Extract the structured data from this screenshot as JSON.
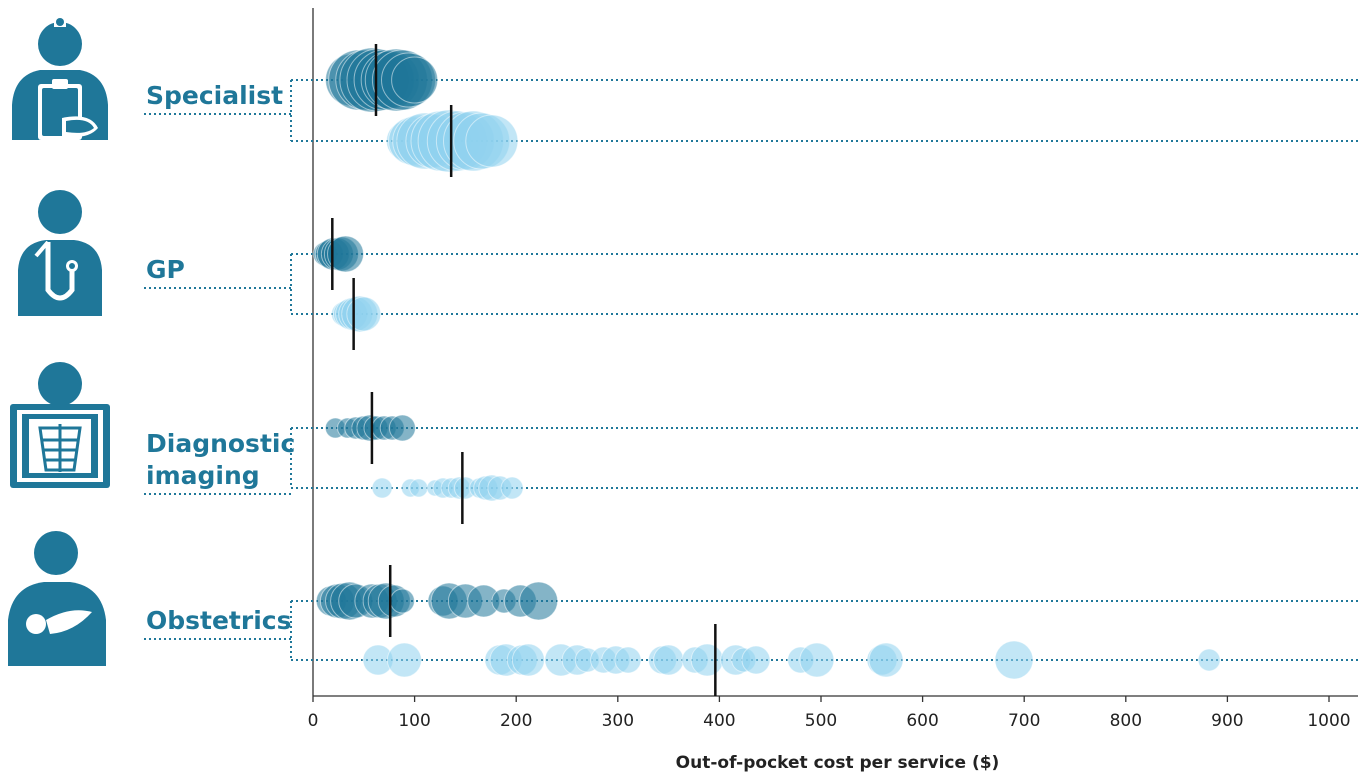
{
  "colors": {
    "dark": "#1f7799",
    "light": "#8fd1ef",
    "axis": "#333333",
    "label": "#1f7799"
  },
  "chart_data": {
    "type": "scatter",
    "xlabel": "Out-of-pocket cost per service ($)",
    "xlim": [
      0,
      1000
    ],
    "xticks": [
      "0",
      "100",
      "200",
      "300",
      "400",
      "500",
      "600",
      "700",
      "800",
      "900",
      "1000"
    ],
    "groups": [
      {
        "label_lines": [
          "Specialist"
        ],
        "icon": "specialist-clipboard-icon",
        "rows": [
          {
            "shade": "dark",
            "median": 62,
            "points": [
              [
                38,
                26
              ],
              [
                45,
                30
              ],
              [
                52,
                30
              ],
              [
                58,
                32
              ],
              [
                64,
                31
              ],
              [
                70,
                30
              ],
              [
                76,
                29
              ],
              [
                82,
                31
              ],
              [
                88,
                30
              ],
              [
                94,
                27
              ],
              [
                100,
                23
              ]
            ]
          },
          {
            "shade": "light",
            "median": 136,
            "points": [
              [
                92,
                20
              ],
              [
                98,
                24
              ],
              [
                104,
                26
              ],
              [
                110,
                28
              ],
              [
                118,
                27
              ],
              [
                126,
                30
              ],
              [
                134,
                31
              ],
              [
                142,
                30
              ],
              [
                150,
                29
              ],
              [
                158,
                30
              ],
              [
                166,
                28
              ],
              [
                176,
                26
              ]
            ]
          }
        ]
      },
      {
        "label_lines": [
          "GP"
        ],
        "icon": "gp-stethoscope-icon",
        "rows": [
          {
            "shade": "dark",
            "median": 19,
            "points": [
              [
                12,
                12
              ],
              [
                16,
                14
              ],
              [
                20,
                16
              ],
              [
                24,
                16
              ],
              [
                28,
                17
              ],
              [
                32,
                18
              ]
            ]
          },
          {
            "shade": "light",
            "median": 40,
            "points": [
              [
                30,
                12
              ],
              [
                34,
                14
              ],
              [
                38,
                16
              ],
              [
                42,
                17
              ],
              [
                46,
                18
              ],
              [
                50,
                17
              ]
            ]
          }
        ]
      },
      {
        "label_lines": [
          "Diagnostic",
          "imaging"
        ],
        "icon": "diagnostic-imaging-xray-icon",
        "rows": [
          {
            "shade": "dark",
            "median": 58,
            "points": [
              [
                22,
                10
              ],
              [
                34,
                10
              ],
              [
                42,
                11
              ],
              [
                50,
                12
              ],
              [
                56,
                13
              ],
              [
                62,
                12
              ],
              [
                70,
                12
              ],
              [
                78,
                12
              ],
              [
                88,
                13
              ]
            ]
          },
          {
            "shade": "light",
            "median": 147,
            "points": [
              [
                68,
                10
              ],
              [
                96,
                9
              ],
              [
                104,
                9
              ],
              [
                120,
                8
              ],
              [
                128,
                10
              ],
              [
                136,
                10
              ],
              [
                144,
                11
              ],
              [
                150,
                11
              ],
              [
                164,
                10
              ],
              [
                170,
                12
              ],
              [
                176,
                13
              ],
              [
                184,
                12
              ],
              [
                196,
                11
              ]
            ]
          }
        ]
      },
      {
        "label_lines": [
          "Obstetrics"
        ],
        "icon": "obstetrics-baby-icon",
        "rows": [
          {
            "shade": "dark",
            "median": 76,
            "points": [
              [
                18,
                15
              ],
              [
                24,
                17
              ],
              [
                30,
                18
              ],
              [
                36,
                19
              ],
              [
                42,
                17
              ],
              [
                58,
                17
              ],
              [
                66,
                17
              ],
              [
                72,
                18
              ],
              [
                80,
                16
              ],
              [
                88,
                12
              ],
              [
                128,
                15
              ],
              [
                134,
                18
              ],
              [
                150,
                17
              ],
              [
                168,
                16
              ],
              [
                188,
                12
              ],
              [
                204,
                16
              ],
              [
                222,
                19
              ]
            ]
          },
          {
            "shade": "light",
            "median": 396,
            "points": [
              [
                64,
                15
              ],
              [
                90,
                17
              ],
              [
                184,
                15
              ],
              [
                190,
                16
              ],
              [
                206,
                15
              ],
              [
                212,
                16
              ],
              [
                244,
                16
              ],
              [
                260,
                15
              ],
              [
                270,
                12
              ],
              [
                286,
                13
              ],
              [
                298,
                14
              ],
              [
                310,
                13
              ],
              [
                344,
                14
              ],
              [
                350,
                15
              ],
              [
                376,
                13
              ],
              [
                388,
                16
              ],
              [
                416,
                15
              ],
              [
                424,
                12
              ],
              [
                436,
                14
              ],
              [
                480,
                13
              ],
              [
                496,
                17
              ],
              [
                560,
                15
              ],
              [
                564,
                17
              ],
              [
                690,
                19
              ],
              [
                882,
                11
              ]
            ]
          }
        ]
      }
    ]
  }
}
